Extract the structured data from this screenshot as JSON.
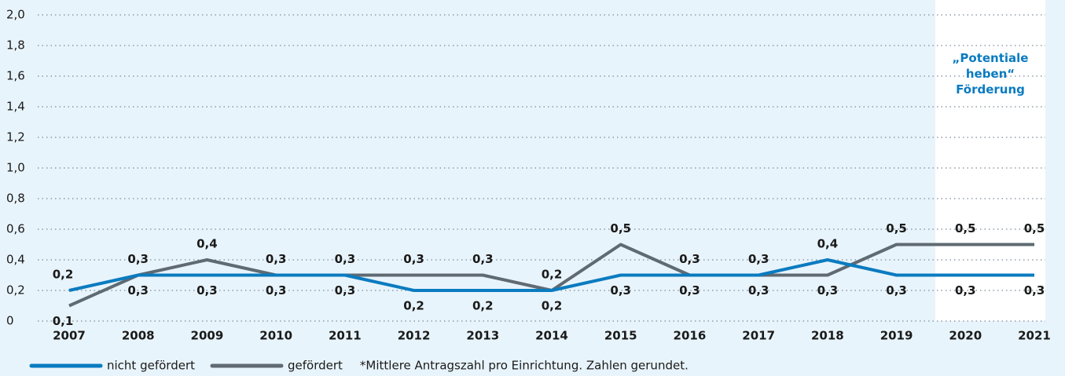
{
  "chart_data": {
    "type": "line",
    "categories": [
      "2007",
      "2008",
      "2009",
      "2010",
      "2011",
      "2012",
      "2013",
      "2014",
      "2015",
      "2016",
      "2017",
      "2018",
      "2019",
      "2020",
      "2021"
    ],
    "series": [
      {
        "name": "nicht gefördert",
        "color": "#0a7bc0",
        "values": [
          0.2,
          0.3,
          0.3,
          0.3,
          0.3,
          0.2,
          0.2,
          0.2,
          0.3,
          0.3,
          0.3,
          0.4,
          0.3,
          0.3,
          0.3
        ],
        "value_labels": [
          "0,2",
          "0,3",
          "0,3",
          "0,3",
          "0,3",
          "0,2",
          "0,2",
          "0,2",
          "0,3",
          "0,3",
          "0,3",
          "0,4",
          "0,3",
          "0,3",
          "0,3"
        ]
      },
      {
        "name": "gefördert",
        "color": "#5f6a72",
        "values": [
          0.1,
          0.3,
          0.4,
          0.3,
          0.3,
          0.3,
          0.3,
          0.2,
          0.5,
          0.3,
          0.3,
          0.3,
          0.5,
          0.5,
          0.5
        ],
        "value_labels": [
          "0,1",
          "0,3",
          "0,4",
          "0,3",
          "0,3",
          "0,3",
          "0,3",
          "0,2",
          "0,5",
          "0,3",
          "0,3",
          "0,3",
          "0,5",
          "0,5",
          "0,5"
        ]
      }
    ],
    "ylim": [
      0,
      2.0
    ],
    "yticks": [
      0,
      {
        "value": 0.2,
        "label": "0,2"
      },
      {
        "value": 0.4,
        "label": "0,4"
      },
      {
        "value": 0.6,
        "label": "0,6"
      },
      {
        "value": 0.8,
        "label": "0,8"
      },
      {
        "value": 1.0,
        "label": "1,0"
      },
      {
        "value": 1.2,
        "label": "1,2"
      },
      {
        "value": 1.4,
        "label": "1,4"
      },
      {
        "value": 1.6,
        "label": "1,6"
      },
      {
        "value": 1.8,
        "label": "1,8"
      },
      {
        "value": 2.0,
        "label": "2,0"
      }
    ],
    "grid": true,
    "annotation": "„Potentiale heben“ Förderung",
    "footnote": "*Mittlere Antragszahl pro Einrichtung. Zahlen gerundet."
  }
}
